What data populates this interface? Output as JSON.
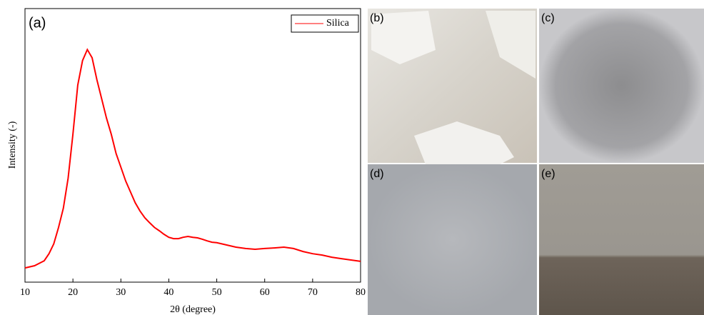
{
  "chart_data": {
    "type": "line",
    "panel_label": "(a)",
    "x_label": "2θ (degree)",
    "y_label": "Intensity (-)",
    "x": [
      10,
      12,
      14,
      15,
      16,
      17,
      18,
      19,
      20,
      21,
      22,
      23,
      24,
      25,
      26,
      27,
      28,
      29,
      30,
      31,
      32,
      33,
      34,
      35,
      36,
      37,
      38,
      39,
      40,
      41,
      42,
      43,
      44,
      45,
      46,
      47,
      48,
      49,
      50,
      52,
      54,
      56,
      58,
      60,
      62,
      64,
      66,
      68,
      70,
      72,
      74,
      76,
      78,
      80
    ],
    "series": [
      {
        "name": "Silica",
        "color": "#ff0000",
        "values": [
          5.2,
          6,
          7.8,
          10.4,
          14,
          20,
          27,
          38,
          54,
          72,
          81,
          85,
          82,
          74,
          67,
          60,
          54,
          47,
          42,
          37,
          33,
          29,
          26,
          23.5,
          21.7,
          20,
          18.8,
          17.5,
          16.4,
          15.9,
          15.9,
          16.4,
          16.7,
          16.4,
          16.2,
          15.7,
          15.1,
          14.6,
          14.4,
          13.6,
          12.8,
          12.3,
          12,
          12.3,
          12.5,
          12.8,
          12.3,
          11.2,
          10.4,
          9.9,
          9.1,
          8.6,
          8.1,
          7.6
        ]
      }
    ],
    "xlim": [
      10,
      80
    ],
    "xticks": [
      10,
      20,
      30,
      40,
      50,
      60,
      70,
      80
    ],
    "ylim": [
      0,
      100
    ],
    "legend": "upper right"
  },
  "photos": [
    {
      "label": "(b)"
    },
    {
      "label": "(c)"
    },
    {
      "label": "(d)"
    },
    {
      "label": "(e)"
    }
  ]
}
